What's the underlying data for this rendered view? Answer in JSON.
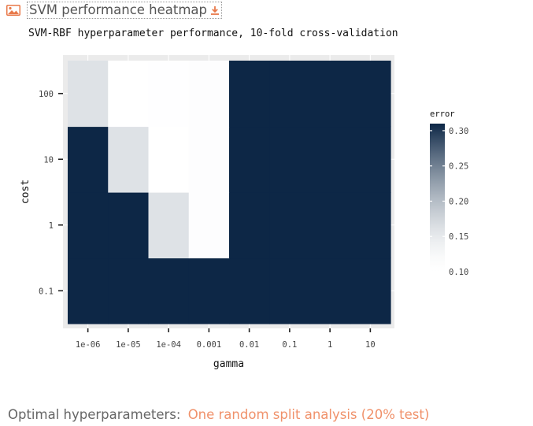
{
  "header": {
    "title": "SVM performance heatmap",
    "image_icon": "image-icon",
    "download_icon": "download-icon"
  },
  "subtitle": "SVM-RBF hyperparameter performance, 10-fold cross-validation",
  "footer": {
    "label": "Optimal hyperparameters:",
    "link": "One random split analysis (20% test)"
  },
  "colors": {
    "panel_bg": "#ebebeb",
    "low": "#ffffff",
    "high": "#0d2746",
    "link": "#f0916a"
  },
  "chart_data": {
    "type": "heatmap",
    "title": "",
    "xlabel": "gamma",
    "ylabel": "cost",
    "x_categories": [
      "1e-06",
      "1e-05",
      "1e-04",
      "0.001",
      "0.01",
      "0.1",
      "1",
      "10"
    ],
    "y_categories": [
      "0.1",
      "1",
      "10",
      "100"
    ],
    "values": [
      [
        0.31,
        0.31,
        0.31,
        0.31,
        0.31,
        0.31,
        0.31,
        0.31
      ],
      [
        0.31,
        0.31,
        0.16,
        0.11,
        0.31,
        0.31,
        0.31,
        0.31
      ],
      [
        0.31,
        0.16,
        0.1,
        0.11,
        0.31,
        0.31,
        0.31,
        0.31
      ],
      [
        0.16,
        0.1,
        0.105,
        0.11,
        0.31,
        0.31,
        0.31,
        0.31
      ]
    ],
    "legend": {
      "title": "error",
      "ticks": [
        "0.10",
        "0.15",
        "0.20",
        "0.25",
        "0.30"
      ],
      "range": [
        0.1,
        0.31
      ],
      "placement": "right"
    },
    "grid": true
  }
}
